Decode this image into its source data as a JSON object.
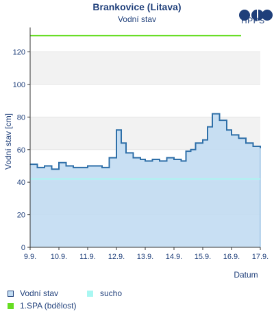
{
  "header": {
    "title": "Brankovice (Litava)",
    "subtitle": "Vodní stav",
    "logo_text": "HPPS"
  },
  "legend": [
    {
      "label": "Vodní stav",
      "color": "#c2dcf2",
      "border": "#1f3f7a"
    },
    {
      "label": "sucho",
      "color": "#a9f7f2"
    },
    {
      "label": "1.SPA (bdělost)",
      "color": "#66dd22"
    }
  ],
  "colors": {
    "series_line": "#2e6fa8",
    "series_fill": "#c2dcf2",
    "drought": "#a9f7f2",
    "spa1": "#66dd22",
    "band": "#f2f2f2",
    "text": "#1f3f7a"
  },
  "chart_data": {
    "type": "area",
    "title": "Brankovice (Litava)",
    "subtitle": "Vodní stav",
    "xlabel": "Datum",
    "ylabel": "Vodní stav [cm]",
    "ylim": [
      0,
      135
    ],
    "y_ticks": [
      0,
      20,
      40,
      60,
      80,
      100,
      120
    ],
    "x_range": [
      "2024-09-09",
      "2024-09-17"
    ],
    "x_tick_labels": [
      "9.9.",
      "10.9.",
      "11.9.",
      "12.9.",
      "13.9.",
      "14.9.",
      "15.9.",
      "16.9.",
      "17.9."
    ],
    "thresholds": [
      {
        "name": "sucho",
        "value": 42
      },
      {
        "name": "1.SPA (bdělost)",
        "value": 130
      }
    ],
    "series": [
      {
        "name": "Vodní stav",
        "x": [
          "2024-09-09 00:00",
          "2024-09-09 06:00",
          "2024-09-09 12:00",
          "2024-09-09 18:00",
          "2024-09-10 00:00",
          "2024-09-10 06:00",
          "2024-09-10 12:00",
          "2024-09-10 18:00",
          "2024-09-11 00:00",
          "2024-09-11 06:00",
          "2024-09-11 12:00",
          "2024-09-11 18:00",
          "2024-09-12 00:00",
          "2024-09-12 04:00",
          "2024-09-12 08:00",
          "2024-09-12 14:00",
          "2024-09-12 20:00",
          "2024-09-13 00:00",
          "2024-09-13 06:00",
          "2024-09-13 12:00",
          "2024-09-13 18:00",
          "2024-09-14 00:00",
          "2024-09-14 06:00",
          "2024-09-14 10:00",
          "2024-09-14 14:00",
          "2024-09-14 18:00",
          "2024-09-15 00:00",
          "2024-09-15 04:00",
          "2024-09-15 08:00",
          "2024-09-15 14:00",
          "2024-09-15 20:00",
          "2024-09-16 00:00",
          "2024-09-16 06:00",
          "2024-09-16 12:00",
          "2024-09-16 18:00",
          "2024-09-16 21:00",
          "2024-09-17 00:00"
        ],
        "values": [
          51,
          49,
          50,
          48,
          52,
          50,
          49,
          49,
          50,
          50,
          49,
          55,
          72,
          64,
          58,
          55,
          54,
          53,
          54,
          53,
          55,
          54,
          53,
          59,
          60,
          64,
          66,
          74,
          82,
          78,
          72,
          69,
          67,
          64,
          62,
          62,
          61
        ]
      }
    ]
  }
}
